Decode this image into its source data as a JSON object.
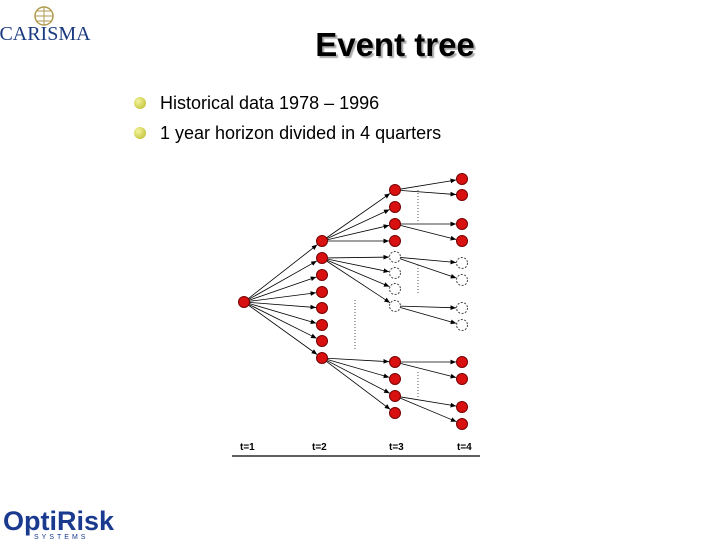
{
  "logo_top": "CARISMA",
  "title": "Event tree",
  "bullets": [
    "Historical data 1978 – 1996",
    "1 year horizon divided in 4 quarters"
  ],
  "diagram": {
    "time_labels": [
      "t=1",
      "t=2",
      "t=3",
      "t=4"
    ]
  },
  "logo_bottom": {
    "name": "OptiRisk",
    "sub": "SYSTEMS"
  }
}
